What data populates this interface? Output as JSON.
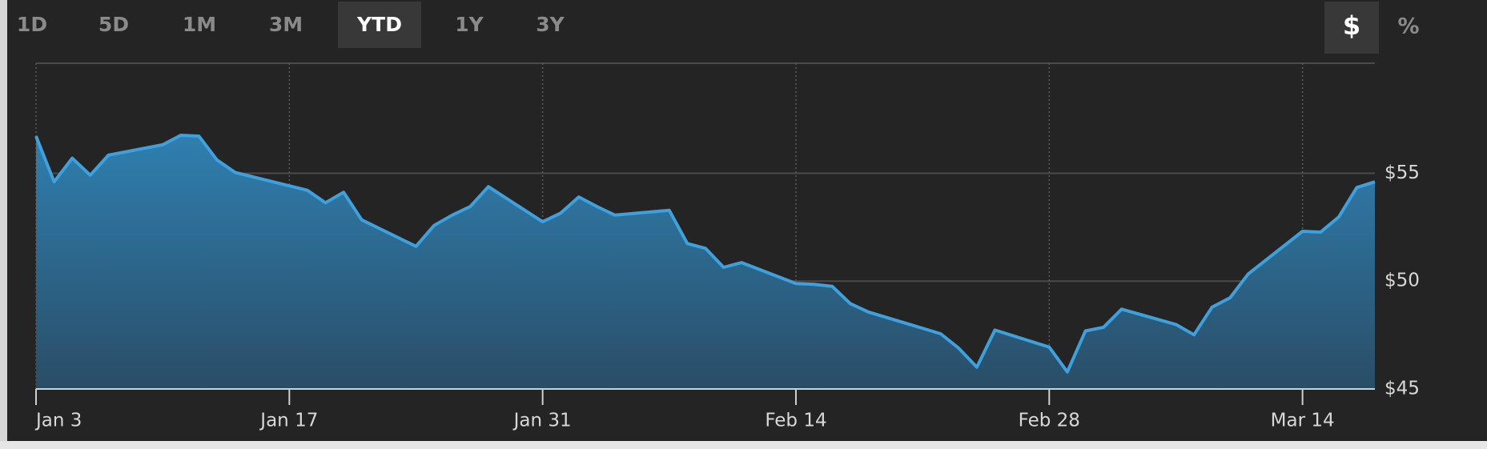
{
  "controls": {
    "ranges": [
      {
        "label": "1D"
      },
      {
        "label": "5D"
      },
      {
        "label": "1M"
      },
      {
        "label": "3M"
      },
      {
        "label": "YTD",
        "active": true
      },
      {
        "label": "1Y"
      },
      {
        "label": "3Y"
      }
    ],
    "units": [
      {
        "label": "$",
        "active": true
      },
      {
        "label": "%"
      }
    ]
  },
  "chart_data": {
    "type": "area",
    "x": [
      3,
      4,
      5,
      6,
      7,
      10,
      11,
      12,
      13,
      14,
      18,
      19,
      20,
      21,
      24,
      25,
      26,
      27,
      28,
      31,
      32,
      33,
      34,
      35,
      38,
      39,
      40,
      41,
      42,
      45,
      46,
      47,
      48,
      49,
      53,
      54,
      55,
      56,
      59,
      60,
      61,
      62,
      63,
      66,
      67,
      68,
      69,
      70,
      73,
      74,
      75,
      76,
      77
    ],
    "values": [
      56.72,
      54.6,
      55.7,
      54.91,
      55.84,
      56.32,
      56.76,
      56.72,
      55.62,
      55.04,
      54.21,
      53.63,
      54.12,
      52.84,
      51.61,
      52.58,
      53.06,
      53.46,
      54.38,
      52.75,
      53.15,
      53.9,
      53.46,
      53.06,
      53.28,
      51.74,
      51.52,
      50.64,
      50.86,
      49.89,
      49.85,
      49.76,
      48.96,
      48.57,
      47.56,
      46.89,
      46.01,
      47.73,
      46.94,
      45.79,
      47.69,
      47.86,
      48.7,
      47.99,
      47.51,
      48.79,
      49.23,
      50.33,
      52.31,
      52.27,
      52.97,
      54.34,
      54.6
    ],
    "color": "#3ea0dc",
    "xlim": [
      3,
      77
    ],
    "xticks": [
      {
        "value": 3,
        "label": "Jan 3"
      },
      {
        "value": 17,
        "label": "Jan 17"
      },
      {
        "value": 31,
        "label": "Jan 31"
      },
      {
        "value": 45,
        "label": "Feb 14"
      },
      {
        "value": 59,
        "label": "Feb 28"
      },
      {
        "value": 73,
        "label": "Mar 14"
      }
    ],
    "ylim": [
      45,
      60.1
    ],
    "yticks": [
      {
        "value": 45,
        "label": "$45"
      },
      {
        "value": 50,
        "label": "$50"
      },
      {
        "value": 55,
        "label": "$55"
      }
    ],
    "grid": true
  }
}
